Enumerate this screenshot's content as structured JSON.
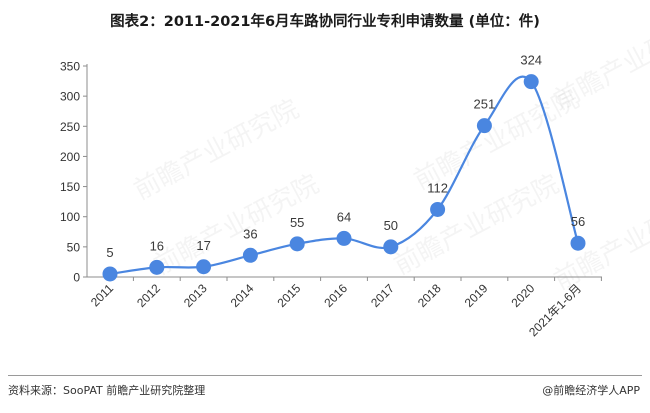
{
  "title": "图表2：2011-2021年6月车路协同行业专利申请数量 (单位：件)",
  "source": "资料来源：SooPAT 前瞻产业研究院整理",
  "brand": "@前瞻经济学人APP",
  "watermark": "前瞻产业研究院",
  "colors": {
    "line": "#4a86e0",
    "marker": "#4a86e0",
    "axis": "#8c8c8c"
  },
  "chart_data": {
    "type": "line",
    "smooth": true,
    "categories": [
      "2011",
      "2012",
      "2013",
      "2014",
      "2015",
      "2016",
      "2017",
      "2018",
      "2019",
      "2020",
      "2021年1-6月"
    ],
    "values": [
      5,
      16,
      17,
      36,
      55,
      64,
      50,
      112,
      251,
      324,
      56
    ],
    "ylim": [
      0,
      350
    ],
    "yticks": [
      0,
      50,
      100,
      150,
      200,
      250,
      300,
      350
    ],
    "grid": false,
    "legend": "none"
  }
}
